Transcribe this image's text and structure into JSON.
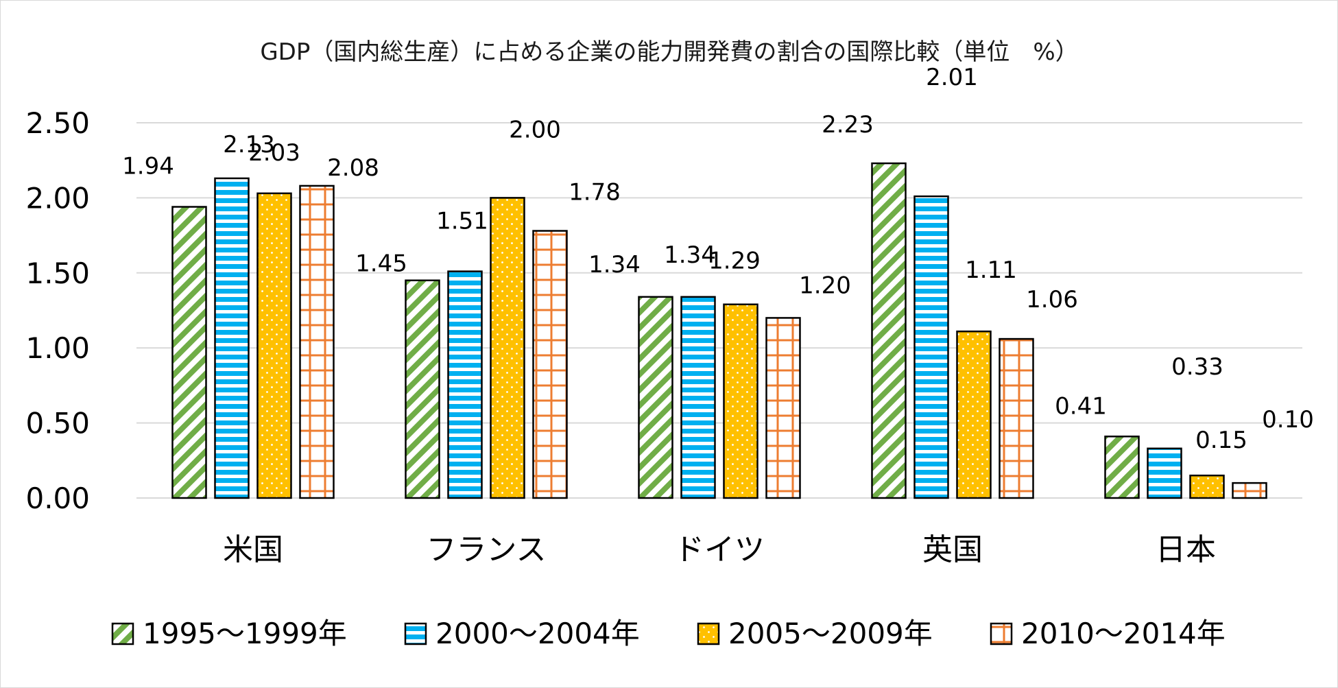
{
  "chart_data": {
    "type": "bar",
    "title": "GDP（国内総生産）に占める企業の能力開発費の割合の国際比較（単位　%）",
    "xlabel": "",
    "ylabel": "",
    "ylim": [
      0,
      2.5
    ],
    "yticks": [
      "0.00",
      "0.50",
      "1.00",
      "1.50",
      "2.00",
      "2.50"
    ],
    "grid": true,
    "legend_position": "bottom",
    "categories": [
      "米国",
      "フランス",
      "ドイツ",
      "英国",
      "日本"
    ],
    "series": [
      {
        "name": "1995～1999年",
        "values": [
          1.94,
          1.45,
          1.34,
          2.23,
          0.41
        ],
        "labels": [
          "1.94",
          "1.45",
          "1.34",
          "2.23",
          "0.41"
        ],
        "color": "#70ad47",
        "pattern": "diagonal-stripes"
      },
      {
        "name": "2000～2004年",
        "values": [
          2.13,
          1.51,
          1.34,
          2.01,
          0.33
        ],
        "labels": [
          "2.13",
          "1.51",
          "1.34",
          "2.01",
          "0.33"
        ],
        "color": "#00b0f0",
        "pattern": "horizontal-stripes"
      },
      {
        "name": "2005～2009年",
        "values": [
          2.03,
          2.0,
          1.29,
          1.11,
          0.15
        ],
        "labels": [
          "2.03",
          "2.00",
          "1.29",
          "1.11",
          "0.15"
        ],
        "color": "#ffc000",
        "pattern": "dots"
      },
      {
        "name": "2010～2014年",
        "values": [
          2.08,
          1.78,
          1.2,
          1.06,
          0.1
        ],
        "labels": [
          "2.08",
          "1.78",
          "1.20",
          "1.06",
          "0.10"
        ],
        "color": "#ed7d31",
        "pattern": "grid"
      }
    ]
  }
}
